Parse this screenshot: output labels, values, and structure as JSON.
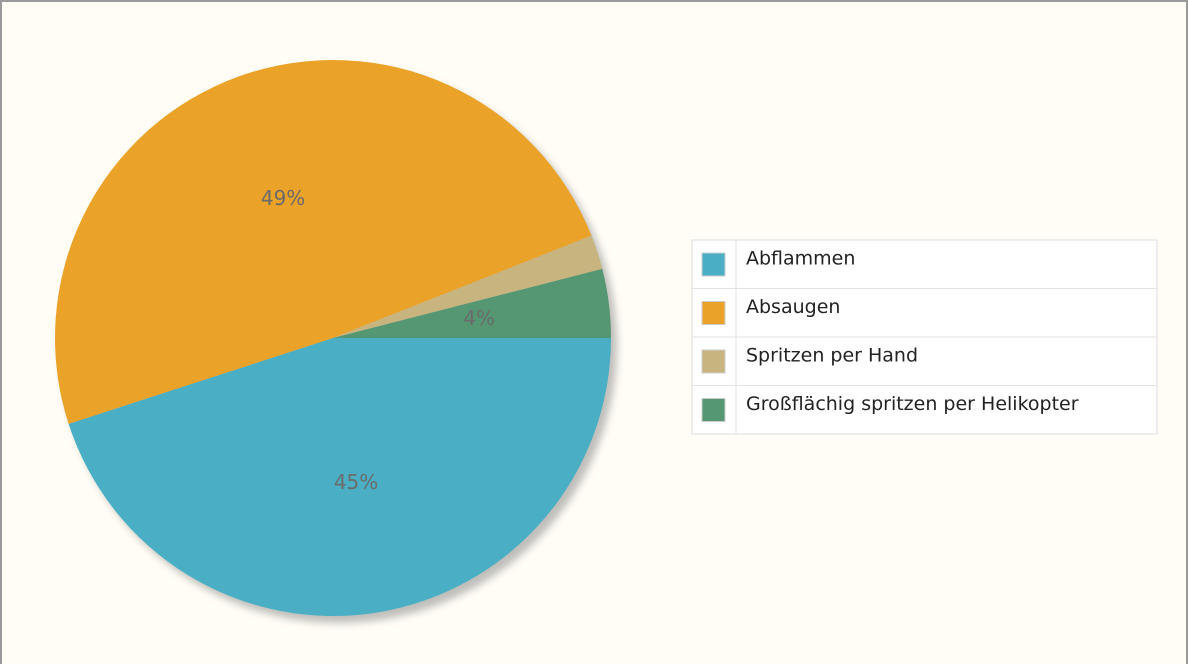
{
  "chart_data": {
    "type": "pie",
    "categories": [
      "Abflammen",
      "Absaugen",
      "Spritzen per Hand",
      "Großflächig spritzen per Helikopter"
    ],
    "values": [
      45,
      49,
      2,
      4
    ],
    "value_labels": [
      "45%",
      "49%",
      null,
      "4%"
    ],
    "colors": [
      "#4aafc5",
      "#eba229",
      "#c8b47e",
      "#559772"
    ],
    "legend": "right"
  }
}
